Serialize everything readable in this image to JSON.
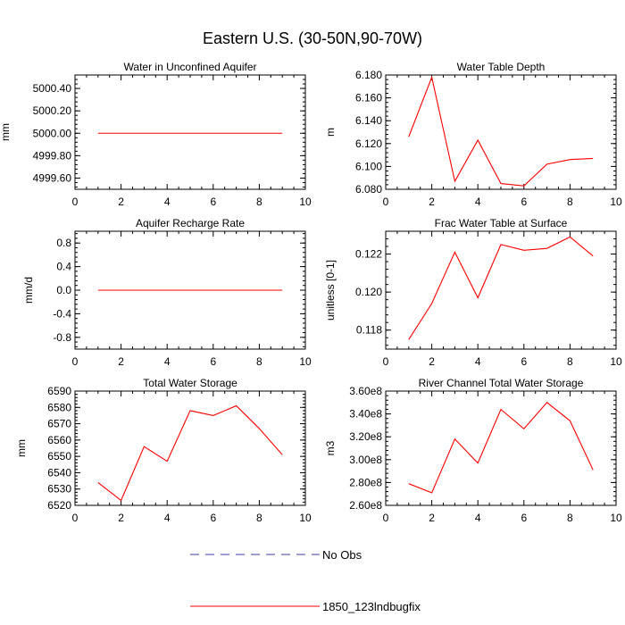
{
  "title": "Eastern U.S. (30-50N,90-70W)",
  "colors": {
    "model": "#ff0000",
    "obs": "#3c3ca0",
    "axis": "#000000"
  },
  "legend": {
    "entries": [
      {
        "label": "No Obs",
        "style": "dashed",
        "color": "#3c3ca0"
      },
      {
        "label": "1850_123lndbugfix",
        "style": "solid",
        "color": "#ff0000"
      }
    ]
  },
  "chart_data": [
    {
      "type": "line",
      "title": "Water in Unconfined Aquifer",
      "ylabel": "mm",
      "xlim": [
        0,
        10
      ],
      "ylim": [
        4999.5,
        5000.52
      ],
      "xticks": [
        0,
        2,
        4,
        6,
        8,
        10
      ],
      "yticks": [
        4999.6,
        4999.8,
        5000.0,
        5000.2,
        5000.4
      ],
      "ytick_labels": [
        "4999.60",
        "4999.80",
        "5000.00",
        "5000.20",
        "5000.40"
      ],
      "yminor": 0.04,
      "series": [
        {
          "name": "1850_123lndbugfix",
          "x": [
            1,
            2,
            3,
            4,
            5,
            6,
            7,
            8,
            9
          ],
          "values": [
            5000.0,
            5000.0,
            5000.0,
            5000.0,
            5000.0,
            5000.0,
            5000.0,
            5000.0,
            5000.0
          ]
        }
      ]
    },
    {
      "type": "line",
      "title": "Water Table Depth",
      "ylabel": "m",
      "xlim": [
        0,
        10
      ],
      "ylim": [
        6.08,
        6.18
      ],
      "xticks": [
        0,
        2,
        4,
        6,
        8,
        10
      ],
      "yticks": [
        6.08,
        6.1,
        6.12,
        6.14,
        6.16,
        6.18
      ],
      "ytick_labels": [
        "6.080",
        "6.100",
        "6.120",
        "6.140",
        "6.160",
        "6.180"
      ],
      "yminor": 0.004,
      "series": [
        {
          "name": "1850_123lndbugfix",
          "x": [
            1,
            2,
            3,
            4,
            5,
            6,
            7,
            8,
            9
          ],
          "values": [
            6.126,
            6.178,
            6.087,
            6.123,
            6.085,
            6.083,
            6.102,
            6.106,
            6.107
          ]
        }
      ]
    },
    {
      "type": "line",
      "title": "Aquifer Recharge Rate",
      "ylabel": "mm/d",
      "xlim": [
        0,
        10
      ],
      "ylim": [
        -1.0,
        1.0
      ],
      "xticks": [
        0,
        2,
        4,
        6,
        8,
        10
      ],
      "yticks": [
        -0.8,
        -0.4,
        0.0,
        0.4,
        0.8
      ],
      "ytick_labels": [
        "-0.8",
        "-0.4",
        "0.0",
        "0.4",
        "0.8"
      ],
      "yminor": 0.08,
      "series": [
        {
          "name": "1850_123lndbugfix",
          "x": [
            1,
            2,
            3,
            4,
            5,
            6,
            7,
            8,
            9
          ],
          "values": [
            0,
            0,
            0,
            0,
            0,
            0,
            0,
            0,
            0
          ]
        }
      ]
    },
    {
      "type": "line",
      "title": "Frac Water Table at Surface",
      "ylabel": "unitless [0-1]",
      "xlim": [
        0,
        10
      ],
      "ylim": [
        0.117,
        0.1232
      ],
      "xticks": [
        0,
        2,
        4,
        6,
        8,
        10
      ],
      "yticks": [
        0.118,
        0.12,
        0.122
      ],
      "ytick_labels": [
        "0.118",
        "0.120",
        "0.122"
      ],
      "yminor": 0.0004,
      "series": [
        {
          "name": "1850_123lndbugfix",
          "x": [
            1,
            2,
            3,
            4,
            5,
            6,
            7,
            8,
            9
          ],
          "values": [
            0.1175,
            0.1194,
            0.1221,
            0.1197,
            0.1225,
            0.1222,
            0.1223,
            0.1229,
            0.1219
          ]
        }
      ]
    },
    {
      "type": "line",
      "title": "Total Water Storage",
      "ylabel": "mm",
      "xlim": [
        0,
        10
      ],
      "ylim": [
        6520,
        6590
      ],
      "xticks": [
        0,
        2,
        4,
        6,
        8,
        10
      ],
      "yticks": [
        6520,
        6530,
        6540,
        6550,
        6560,
        6570,
        6580,
        6590
      ],
      "ytick_labels": [
        "6520",
        "6530",
        "6540",
        "6550",
        "6560",
        "6570",
        "6580",
        "6590"
      ],
      "yminor": 2,
      "series": [
        {
          "name": "1850_123lndbugfix",
          "x": [
            1,
            2,
            3,
            4,
            5,
            6,
            7,
            8,
            9
          ],
          "values": [
            6534,
            6523,
            6556,
            6547,
            6578,
            6575,
            6581,
            6567,
            6551
          ]
        }
      ]
    },
    {
      "type": "line",
      "title": "River Channel Total Water Storage",
      "ylabel": "m3",
      "xlim": [
        0,
        10
      ],
      "ylim": [
        2.6,
        3.6
      ],
      "xticks": [
        0,
        2,
        4,
        6,
        8,
        10
      ],
      "yticks": [
        2.6,
        2.8,
        3.0,
        3.2,
        3.4,
        3.6
      ],
      "ytick_labels": [
        "2.60e8",
        "2.80e8",
        "3.00e8",
        "3.20e8",
        "3.40e8",
        "3.60e8"
      ],
      "yminor": 0.04,
      "series": [
        {
          "name": "1850_123lndbugfix",
          "x": [
            1,
            2,
            3,
            4,
            5,
            6,
            7,
            8,
            9
          ],
          "values": [
            2.79,
            2.71,
            3.18,
            2.97,
            3.44,
            3.27,
            3.5,
            3.34,
            2.91
          ]
        }
      ]
    }
  ]
}
